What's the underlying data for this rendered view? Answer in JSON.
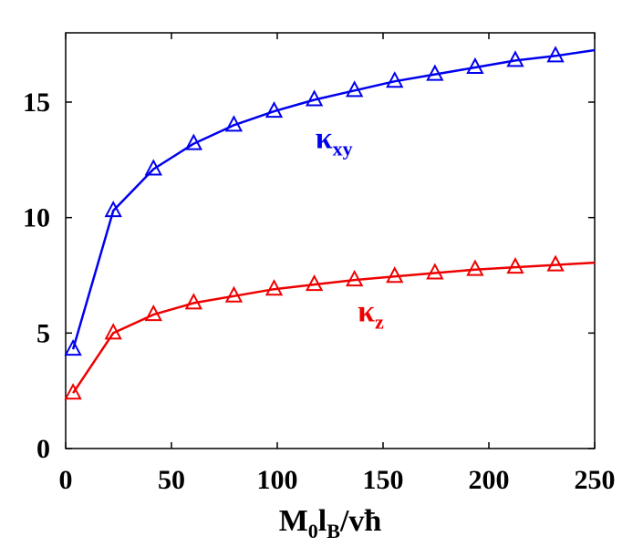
{
  "chart_data": {
    "type": "line",
    "title": "",
    "xlabel": {
      "main": "M",
      "sub1": "0",
      "mid": "l",
      "sub2": "B",
      "tail": "/vħ"
    },
    "ylabel": "",
    "xlim": [
      0,
      250
    ],
    "ylim": [
      0,
      18
    ],
    "xticks": [
      0,
      50,
      100,
      150,
      200,
      250
    ],
    "yticks": [
      0,
      5,
      10,
      15
    ],
    "xtick_labels": [
      "0",
      "50",
      "100",
      "150",
      "200",
      "250"
    ],
    "ytick_labels": [
      "0",
      "5",
      "10",
      "15"
    ],
    "grid": false,
    "legend": "none",
    "series": [
      {
        "name": "κxy",
        "label_main": "κ",
        "label_sub": "xy",
        "label_at": [
          118,
          13.0
        ],
        "color": "#0000ee",
        "markers": "triangle-open",
        "x": [
          3.5,
          22.5,
          41.5,
          60.5,
          79.5,
          98.5,
          117.5,
          136.5,
          155.5,
          174.5,
          193.5,
          212.5,
          231.5
        ],
        "y": [
          4.3,
          10.3,
          12.1,
          13.2,
          14.0,
          14.6,
          15.1,
          15.5,
          15.9,
          16.2,
          16.5,
          16.8,
          17.0
        ],
        "curve_x": [
          3.5,
          22.5,
          41.5,
          60.5,
          79.5,
          98.5,
          117.5,
          136.5,
          155.5,
          174.5,
          193.5,
          212.5,
          231.5,
          250
        ],
        "curve_y": [
          4.3,
          10.3,
          12.1,
          13.2,
          14.0,
          14.6,
          15.1,
          15.5,
          15.9,
          16.2,
          16.5,
          16.8,
          17.0,
          17.25
        ]
      },
      {
        "name": "κz",
        "label_main": "κ",
        "label_sub": "z",
        "label_at": [
          138,
          5.5
        ],
        "color": "#ee0000",
        "markers": "triangle-open",
        "x": [
          3.5,
          22.5,
          41.5,
          60.5,
          79.5,
          98.5,
          117.5,
          136.5,
          155.5,
          174.5,
          193.5,
          212.5,
          231.5
        ],
        "y": [
          2.4,
          5.0,
          5.8,
          6.3,
          6.6,
          6.9,
          7.1,
          7.3,
          7.45,
          7.6,
          7.75,
          7.85,
          7.95
        ],
        "curve_x": [
          3.5,
          22.5,
          41.5,
          60.5,
          79.5,
          98.5,
          117.5,
          136.5,
          155.5,
          174.5,
          193.5,
          212.5,
          231.5,
          250
        ],
        "curve_y": [
          2.4,
          5.0,
          5.8,
          6.3,
          6.6,
          6.9,
          7.1,
          7.3,
          7.45,
          7.6,
          7.75,
          7.85,
          7.95,
          8.05
        ]
      }
    ]
  }
}
